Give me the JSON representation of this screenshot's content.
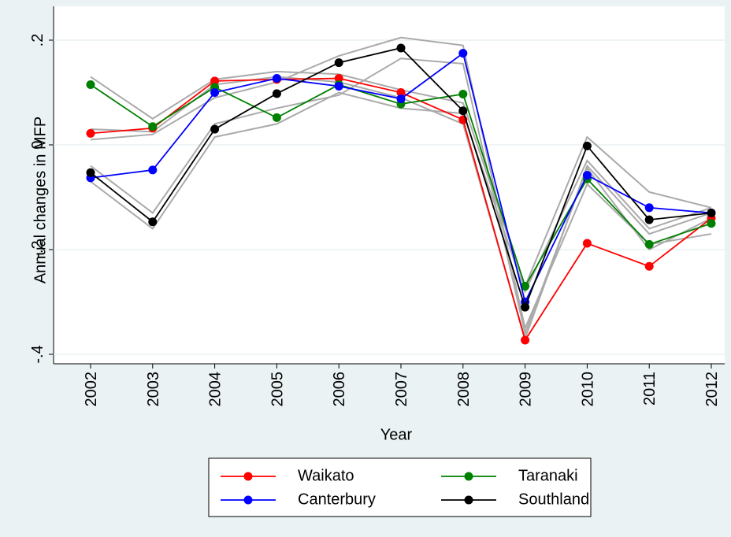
{
  "chart_data": {
    "type": "line",
    "x": [
      2002,
      2003,
      2004,
      2005,
      2006,
      2007,
      2008,
      2009,
      2010,
      2011,
      2012
    ],
    "xlim": [
      2002,
      2012
    ],
    "xticks": [
      2002,
      2003,
      2004,
      2005,
      2006,
      2007,
      2008,
      2009,
      2010,
      2011,
      2012
    ],
    "ylim": [
      -0.4,
      0.2
    ],
    "yticks": [
      {
        "value": -0.4,
        "label": "-.4"
      },
      {
        "value": -0.2,
        "label": "-.2"
      },
      0,
      {
        "value": 0.2,
        "label": ".2"
      }
    ],
    "grid": true,
    "xlabel": "Year",
    "ylabel": "Annual changes in MFP",
    "legend": "bottom",
    "series": [
      {
        "color": "#aaaaaa",
        "values": [
          0.13,
          0.05,
          0.125,
          0.14,
          0.135,
          0.105,
          0.08,
          -0.27,
          0.015,
          -0.09,
          -0.12
        ]
      },
      {
        "color": "#aaaaaa",
        "values": [
          0.01,
          0.02,
          0.09,
          0.12,
          0.17,
          0.205,
          0.19,
          -0.35,
          -0.075,
          -0.19,
          -0.17
        ]
      },
      {
        "color": "#aaaaaa",
        "values": [
          -0.07,
          -0.16,
          0.015,
          0.04,
          0.1,
          0.07,
          0.06,
          -0.28,
          -0.03,
          -0.16,
          -0.12
        ]
      },
      {
        "color": "#aaaaaa",
        "values": [
          -0.04,
          -0.13,
          0.04,
          0.07,
          0.095,
          0.165,
          0.155,
          -0.36,
          -0.045,
          -0.2,
          -0.14
        ]
      },
      {
        "color": "#aaaaaa",
        "values": [
          0.03,
          0.025,
          0.115,
          0.13,
          0.12,
          0.09,
          0.04,
          -0.37,
          -0.04,
          -0.17,
          -0.13
        ]
      },
      {
        "name": "Waikato",
        "color": "#ff0000",
        "values": [
          0.022,
          0.032,
          0.122,
          0.125,
          0.127,
          0.1,
          0.048,
          -0.373,
          -0.188,
          -0.232,
          -0.14
        ]
      },
      {
        "name": "Taranaki",
        "color": "#008000",
        "values": [
          0.115,
          0.035,
          0.11,
          0.052,
          0.115,
          0.078,
          0.097,
          -0.27,
          -0.065,
          -0.19,
          -0.15
        ]
      },
      {
        "name": "Canterbury",
        "color": "#0000ff",
        "values": [
          -0.063,
          -0.048,
          0.1,
          0.127,
          0.112,
          0.088,
          0.175,
          -0.3,
          -0.058,
          -0.12,
          -0.13
        ]
      },
      {
        "name": "Southland",
        "color": "#000000",
        "values": [
          -0.053,
          -0.147,
          0.03,
          0.098,
          0.157,
          0.185,
          0.065,
          -0.31,
          -0.002,
          -0.143,
          -0.13
        ]
      }
    ]
  }
}
